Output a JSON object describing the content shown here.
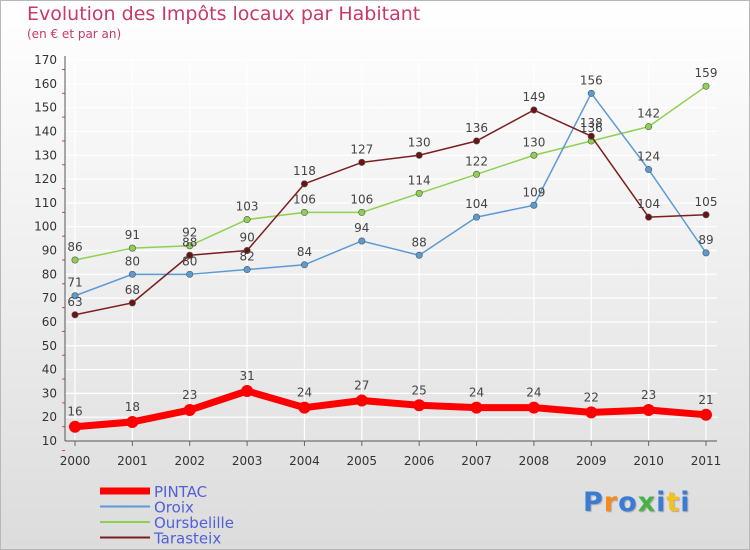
{
  "title": "Evolution des Impôts locaux par Habitant",
  "subtitle": "(en € et par an)",
  "logo_text": "Proxiti",
  "colors": {
    "PINTAC": "#ff0000",
    "Oroix": "#5b9bd5",
    "Oursbelille": "#8fd14f",
    "Tarasteix": "#7a1f1f",
    "title": "#c8396a"
  },
  "chart_data": {
    "type": "line",
    "title": "Evolution des Impôts locaux par Habitant",
    "subtitle": "(en € et par an)",
    "xlabel": "",
    "ylabel": "",
    "x": [
      "2000",
      "2001",
      "2002",
      "2003",
      "2004",
      "2005",
      "2006",
      "2007",
      "2008",
      "2009",
      "2010",
      "2011"
    ],
    "ylim": [
      10,
      170
    ],
    "yticks": [
      10,
      20,
      30,
      40,
      50,
      60,
      70,
      80,
      90,
      100,
      110,
      120,
      130,
      140,
      150,
      160,
      170
    ],
    "grid": true,
    "legend": "bottom-left",
    "series": [
      {
        "name": "PINTAC",
        "values": [
          16,
          18,
          23,
          31,
          24,
          27,
          25,
          24,
          24,
          22,
          23,
          21
        ]
      },
      {
        "name": "Oroix",
        "values": [
          71,
          80,
          80,
          82,
          84,
          94,
          88,
          104,
          109,
          156,
          124,
          89
        ]
      },
      {
        "name": "Oursbelille",
        "values": [
          86,
          91,
          92,
          103,
          106,
          106,
          114,
          122,
          130,
          136,
          142,
          159
        ]
      },
      {
        "name": "Tarasteix",
        "values": [
          63,
          68,
          88,
          90,
          118,
          127,
          130,
          136,
          149,
          138,
          104,
          105
        ]
      }
    ]
  }
}
